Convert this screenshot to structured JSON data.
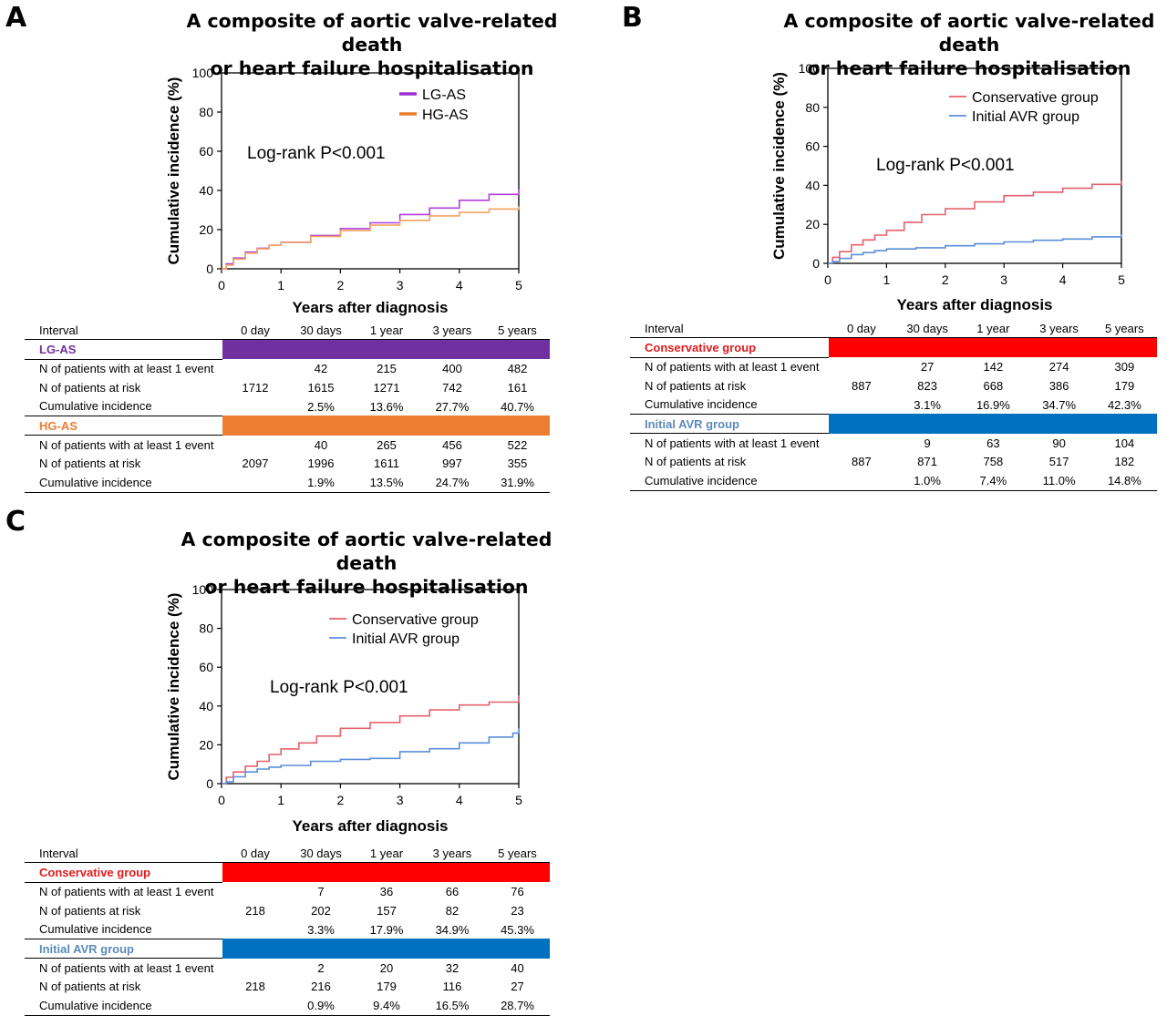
{
  "panels": [
    {
      "letter": "A",
      "title_line1": "A composite of aortic valve-related death",
      "title_line2": "or heart failure hospitalisation",
      "annotation": "Log-rank P<0.001",
      "legend_style": "thick",
      "interval_label": "Interval",
      "interval_headers": [
        "0 day",
        "30 days",
        "1 year",
        "3 years",
        "5 years"
      ],
      "groups": [
        {
          "name": "LG-AS",
          "color": "#7030a0",
          "name_color": "#7030a0",
          "rows": [
            {
              "label": "N of patients with at least 1 event",
              "values": [
                "",
                "42",
                "215",
                "400",
                "482"
              ]
            },
            {
              "label": "N of patients at risk",
              "values": [
                "1712",
                "1615",
                "1271",
                "742",
                "161"
              ]
            },
            {
              "label": "Cumulative incidence",
              "values": [
                "",
                "2.5%",
                "13.6%",
                "27.7%",
                "40.7%"
              ]
            }
          ]
        },
        {
          "name": "HG-AS",
          "color": "#ed7d31",
          "name_color": "#ed7d31",
          "rows": [
            {
              "label": "N of patients with at least 1 event",
              "values": [
                "",
                "40",
                "265",
                "456",
                "522"
              ]
            },
            {
              "label": "N of patients at risk",
              "values": [
                "2097",
                "1996",
                "1611",
                "997",
                "355"
              ]
            },
            {
              "label": "Cumulative incidence",
              "values": [
                "",
                "1.9%",
                "13.5%",
                "24.7%",
                "31.9%"
              ]
            }
          ]
        }
      ]
    },
    {
      "letter": "B",
      "title_line1": "A composite of aortic valve-related death",
      "title_line2": "or heart failure hospitalisation",
      "annotation": "Log-rank  P<0.001",
      "legend_style": "thin",
      "interval_label": "Interval",
      "interval_headers": [
        "0 day",
        "30 days",
        "1 year",
        "3 years",
        "5 years"
      ],
      "groups": [
        {
          "name": "Conservative group",
          "color": "#ff0000",
          "name_color": "#e31a1c",
          "rows": [
            {
              "label": "N of patients with at least 1 event",
              "values": [
                "",
                "27",
                "142",
                "274",
                "309"
              ]
            },
            {
              "label": "N of patients at risk",
              "values": [
                "887",
                "823",
                "668",
                "386",
                "179"
              ]
            },
            {
              "label": "Cumulative  incidence",
              "values": [
                "",
                "3.1%",
                "16.9%",
                "34.7%",
                "42.3%"
              ]
            }
          ]
        },
        {
          "name": "Initial AVR group",
          "color": "#0070c0",
          "name_color": "#5b8bb8",
          "rows": [
            {
              "label": "N of patients with  at least 1 event",
              "values": [
                "",
                "9",
                "63",
                "90",
                "104"
              ]
            },
            {
              "label": "N of patients at risk",
              "values": [
                "887",
                "871",
                "758",
                "517",
                "182"
              ]
            },
            {
              "label": "Cumulative  incidence",
              "values": [
                "",
                "1.0%",
                "7.4%",
                "11.0%",
                "14.8%"
              ]
            }
          ]
        }
      ]
    },
    {
      "letter": "C",
      "title_line1": "A composite of aortic valve-related death",
      "title_line2": "or heart failure hospitalisation",
      "annotation": "Log-rank  P<0.001",
      "legend_style": "thin",
      "interval_label": "Interval",
      "interval_headers": [
        "0 day",
        "30 days",
        "1 year",
        "3 years",
        "5 years"
      ],
      "groups": [
        {
          "name": "Conservative group",
          "color": "#ff0000",
          "name_color": "#e31a1c",
          "rows": [
            {
              "label": "N of patients with at least 1 event",
              "values": [
                "",
                "7",
                "36",
                "66",
                "76"
              ]
            },
            {
              "label": "N of patients at risk",
              "values": [
                "218",
                "202",
                "157",
                "82",
                "23"
              ]
            },
            {
              "label": "Cumulative  incidence",
              "values": [
                "",
                "3.3%",
                "17.9%",
                "34.9%",
                "45.3%"
              ]
            }
          ]
        },
        {
          "name": "Initial AVR group",
          "color": "#0070c0",
          "name_color": "#5b8bb8",
          "rows": [
            {
              "label": "N of patients with at least 1 event",
              "values": [
                "",
                "2",
                "20",
                "32",
                "40"
              ]
            },
            {
              "label": "N of patients at risk",
              "values": [
                "218",
                "216",
                "179",
                "116",
                "27"
              ]
            },
            {
              "label": "Cumulative  incidence",
              "values": [
                "",
                "0.9%",
                "9.4%",
                "16.5%",
                "28.7%"
              ]
            }
          ]
        }
      ]
    }
  ],
  "chart_data": [
    {
      "type": "line",
      "panel": "A",
      "xlabel": "Years after diagnosis",
      "ylabel": "Cumulative incidence (%)",
      "xlim": [
        0,
        5
      ],
      "ylim": [
        0,
        100
      ],
      "xticks": [
        "0",
        "1",
        "2",
        "3",
        "4",
        "5"
      ],
      "yticks": [
        "0",
        "20",
        "40",
        "60",
        "80",
        "100"
      ],
      "legend_position": "top-right",
      "grid": false,
      "series": [
        {
          "name": "LG-AS",
          "color": "#b03fdc",
          "legend_color": "#9b30d0",
          "x": [
            0,
            0.08,
            0.2,
            0.4,
            0.6,
            0.8,
            1,
            1.5,
            2,
            2.5,
            3,
            3.5,
            4,
            4.5,
            5
          ],
          "y": [
            0,
            2.5,
            5.5,
            8.5,
            10.5,
            12,
            13.6,
            17,
            20.5,
            23.5,
            27.7,
            31,
            35,
            38,
            40.7
          ]
        },
        {
          "name": "HG-AS",
          "color": "#f4a460",
          "legend_color": "#ed7d31",
          "x": [
            0,
            0.08,
            0.2,
            0.4,
            0.6,
            0.8,
            1,
            1.5,
            2,
            2.5,
            3,
            3.5,
            4,
            4.5,
            5
          ],
          "y": [
            0,
            1.9,
            5,
            8,
            10.2,
            12,
            13.5,
            16.5,
            19.5,
            22.3,
            24.7,
            27,
            28.8,
            30.5,
            31.9
          ]
        }
      ]
    },
    {
      "type": "line",
      "panel": "B",
      "xlabel": "Years after diagnosis",
      "ylabel": "Cumulative incidence (%)",
      "xlim": [
        0,
        5
      ],
      "ylim": [
        0,
        100
      ],
      "xticks": [
        "0",
        "1",
        "2",
        "3",
        "4",
        "5"
      ],
      "yticks": [
        "0",
        "20",
        "40",
        "60",
        "80",
        "100"
      ],
      "legend_position": "top-right",
      "grid": false,
      "series": [
        {
          "name": "Conservative group",
          "color": "#e5606e",
          "legend_color": "#e5606e",
          "x": [
            0,
            0.08,
            0.2,
            0.4,
            0.6,
            0.8,
            1,
            1.3,
            1.6,
            2,
            2.5,
            3,
            3.5,
            4,
            4.5,
            5
          ],
          "y": [
            0,
            3.1,
            6,
            9.5,
            12,
            14.5,
            16.9,
            21,
            25,
            28,
            31.5,
            34.7,
            36.5,
            38.5,
            40.5,
            42.3
          ]
        },
        {
          "name": "Initial AVR group",
          "color": "#5b8fd9",
          "legend_color": "#5b8fd9",
          "x": [
            0,
            0.08,
            0.2,
            0.4,
            0.6,
            0.8,
            1,
            1.5,
            2,
            2.5,
            3,
            3.5,
            4,
            4.5,
            5
          ],
          "y": [
            0,
            1,
            2.5,
            4.5,
            5.5,
            6.5,
            7.4,
            8,
            9,
            10,
            11,
            11.8,
            12.5,
            13.6,
            14.8
          ]
        }
      ]
    },
    {
      "type": "line",
      "panel": "C",
      "xlabel": "Years after diagnosis",
      "ylabel": "Cumulative incidence (%)",
      "xlim": [
        0,
        5
      ],
      "ylim": [
        0,
        100
      ],
      "xticks": [
        "0",
        "1",
        "2",
        "3",
        "4",
        "5"
      ],
      "yticks": [
        "0",
        "20",
        "40",
        "60",
        "80",
        "100"
      ],
      "legend_position": "top-right",
      "grid": false,
      "series": [
        {
          "name": "Conservative group",
          "color": "#e5606e",
          "legend_color": "#e5606e",
          "x": [
            0,
            0.08,
            0.2,
            0.4,
            0.6,
            0.8,
            1,
            1.3,
            1.6,
            2,
            2.5,
            3,
            3.5,
            4,
            4.5,
            5
          ],
          "y": [
            0,
            3.3,
            6,
            9,
            11.5,
            15,
            17.9,
            21,
            24.5,
            28.5,
            31.5,
            34.9,
            38,
            40.5,
            42,
            45.3
          ]
        },
        {
          "name": "Initial AVR group",
          "color": "#5b8fd9",
          "legend_color": "#5b8fd9",
          "x": [
            0,
            0.08,
            0.2,
            0.4,
            0.6,
            0.8,
            1,
            1.5,
            2,
            2.5,
            3,
            3.5,
            4,
            4.5,
            4.9,
            5
          ],
          "y": [
            0,
            0.9,
            3.5,
            6,
            7.5,
            8.5,
            9.4,
            11.5,
            12.5,
            13,
            16.5,
            18,
            21,
            24,
            26,
            28.7
          ]
        }
      ]
    }
  ]
}
